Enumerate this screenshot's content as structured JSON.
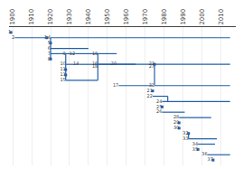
{
  "chart_data": {
    "type": "timeline",
    "xlim": [
      1898,
      2018
    ],
    "xticks": [
      1900,
      1910,
      1920,
      1930,
      1940,
      1950,
      1960,
      1970,
      1980,
      1990,
      2000,
      2010
    ],
    "ylim": [
      25,
      -1
    ],
    "grid": true,
    "tick_labels": "x",
    "color": "#2060a8",
    "items": [
      {
        "label": "1",
        "start": 1899,
        "end": 1899,
        "row": 0
      },
      {
        "label": "2",
        "start": 1901,
        "end": 1918,
        "row": 1
      },
      {
        "label": "3",
        "start": 1918,
        "end": 1918,
        "row": 1
      },
      {
        "label": "4",
        "start": 1920,
        "end": 2015,
        "row": 1
      },
      {
        "label": "5",
        "start": 1920,
        "end": 1920,
        "row": 2
      },
      {
        "label": "6",
        "start": 1920,
        "end": 1940,
        "row": 3
      },
      {
        "label": "7",
        "start": 1920,
        "end": 1928,
        "row": 4
      },
      {
        "label": "8",
        "start": 1920,
        "end": 1920,
        "row": 5
      },
      {
        "label": "9",
        "start": 1928,
        "end": 1933,
        "row": 4
      },
      {
        "label": "10",
        "start": 1928,
        "end": 1935,
        "row": 6
      },
      {
        "label": "11",
        "start": 1928,
        "end": 1928,
        "row": 7
      },
      {
        "label": "12",
        "start": 1933,
        "end": 1945,
        "row": 4
      },
      {
        "label": "13",
        "start": 1928,
        "end": 1928,
        "row": 8
      },
      {
        "label": "14",
        "start": 1935,
        "end": 1945,
        "row": 6
      },
      {
        "label": "15",
        "start": 1928,
        "end": 1945,
        "row": 9
      },
      {
        "label": "16",
        "start": 1945,
        "end": 1955,
        "row": 6
      },
      {
        "label": "17",
        "start": 1956,
        "end": 1974,
        "row": 10
      },
      {
        "label": "18",
        "start": 1945,
        "end": 1965,
        "row": 6
      },
      {
        "label": "19",
        "start": 1945,
        "end": 1955,
        "row": 4
      },
      {
        "label": "20",
        "start": 1955,
        "end": 1975,
        "row": 6
      },
      {
        "label": "21",
        "start": 1974,
        "end": 1974,
        "row": 11
      },
      {
        "label": "22",
        "start": 1974,
        "end": 1982,
        "row": 12
      },
      {
        "label": "23",
        "start": 1975,
        "end": 1975,
        "row": 6
      },
      {
        "label": "24",
        "start": 1979,
        "end": 2015,
        "row": 13
      },
      {
        "label": "25",
        "start": 1979,
        "end": 1979,
        "row": 14
      },
      {
        "label": "26",
        "start": 1979,
        "end": 1991,
        "row": 15
      },
      {
        "label": "27",
        "start": 1975,
        "end": 2015,
        "row": 6
      },
      {
        "label": "28",
        "start": 1988,
        "end": 2005,
        "row": 16
      },
      {
        "label": "29",
        "start": 1988,
        "end": 1988,
        "row": 17
      },
      {
        "label": "30",
        "start": 1988,
        "end": 1988,
        "row": 18
      },
      {
        "label": "31",
        "start": 1975,
        "end": 2015,
        "row": 10
      },
      {
        "label": "32",
        "start": 1993,
        "end": 1993,
        "row": 19
      },
      {
        "label": "33",
        "start": 1993,
        "end": 2008,
        "row": 20
      },
      {
        "label": "34",
        "start": 1998,
        "end": 2007,
        "row": 21
      },
      {
        "label": "35",
        "start": 1998,
        "end": 1998,
        "row": 22
      },
      {
        "label": "36",
        "start": 2003,
        "end": 2015,
        "row": 23
      },
      {
        "label": "37",
        "start": 2006,
        "end": 2006,
        "row": 24
      }
    ],
    "connectors": [
      {
        "x": 1920,
        "rows": [
          1,
          5
        ]
      },
      {
        "x": 1928,
        "rows": [
          4,
          9
        ]
      },
      {
        "x": 1945,
        "rows": [
          4,
          9
        ]
      },
      {
        "x": 1975,
        "rows": [
          6,
          10
        ]
      },
      {
        "x": 1982,
        "rows": [
          12,
          13
        ]
      },
      {
        "x": 1993,
        "rows": [
          19,
          20
        ]
      }
    ]
  }
}
